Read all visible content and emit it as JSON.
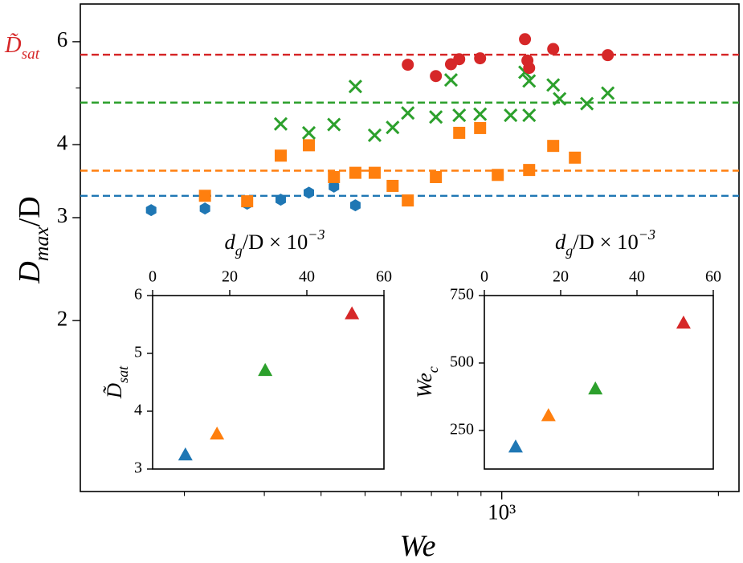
{
  "chart_data": [
    {
      "type": "scatter",
      "xlog": true,
      "ylog": true,
      "xlabel": {
        "text": "We"
      },
      "ylabel": {
        "text": "D",
        "sub": "max",
        "tail": "/D"
      },
      "annotation": {
        "text": "D̃",
        "sub": "sat",
        "color": "#d62728"
      },
      "xlim": [
        118,
        3330
      ],
      "ylim": [
        1.02,
        6.96
      ],
      "xticks": [
        {
          "value": 1000,
          "label": "10³"
        }
      ],
      "xminorticks": [
        200,
        300,
        400,
        500,
        600,
        700,
        800,
        900,
        2000,
        3000
      ],
      "yticks": [
        2,
        3,
        4,
        6
      ],
      "yminorticks": [
        5
      ],
      "hlines": [
        {
          "value": 5.7,
          "color": "#d62728"
        },
        {
          "value": 4.72,
          "color": "#2ca02c"
        },
        {
          "value": 3.61,
          "color": "#ff7f0e"
        },
        {
          "value": 3.27,
          "color": "#1f77b4"
        }
      ],
      "series": [
        {
          "color": "#1f77b4",
          "marker": "hexagon",
          "x": [
            169,
            222,
            275,
            326,
            376,
            427,
            476
          ],
          "values": [
            3.09,
            3.11,
            3.17,
            3.22,
            3.31,
            3.39,
            3.15
          ]
        },
        {
          "color": "#ff7f0e",
          "marker": "square",
          "x": [
            222,
            275,
            326,
            376,
            427,
            476,
            525,
            575,
            621,
            716,
            806,
            896,
            980,
            1149,
            1298,
            1449
          ],
          "values": [
            3.27,
            3.2,
            3.83,
            3.99,
            3.52,
            3.58,
            3.58,
            3.4,
            3.21,
            3.52,
            4.19,
            4.27,
            3.55,
            3.62,
            3.98,
            3.8
          ]
        },
        {
          "color": "#2ca02c",
          "marker": "x",
          "x": [
            326,
            376,
            427,
            476,
            525,
            575,
            621,
            716,
            773,
            806,
            896,
            1046,
            1125,
            1149,
            1149,
            1298,
            1341,
            1540,
            1712
          ],
          "values": [
            4.34,
            4.19,
            4.33,
            5.03,
            4.15,
            4.28,
            4.53,
            4.46,
            5.16,
            4.49,
            4.51,
            4.49,
            5.32,
            4.49,
            5.14,
            5.06,
            4.79,
            4.7,
            4.9
          ]
        },
        {
          "color": "#d62728",
          "marker": "circle",
          "x": [
            621,
            716,
            773,
            806,
            896,
            1125,
            1139,
            1149,
            1298,
            1712
          ],
          "values": [
            5.48,
            5.24,
            5.49,
            5.6,
            5.62,
            6.06,
            5.57,
            5.41,
            5.83,
            5.69
          ]
        }
      ]
    },
    {
      "type": "scatter",
      "xaxis_position": "top",
      "xlabel": {
        "text": "d",
        "sub": "g",
        "tail": "/D  × 10",
        "sup": "−3"
      },
      "ylabel": {
        "text": "D̃",
        "sub": "sat"
      },
      "xlim": [
        0,
        60
      ],
      "ylim": [
        3,
        6
      ],
      "xticks": [
        0,
        20,
        40,
        60
      ],
      "yticks": [
        3,
        4,
        5,
        6
      ],
      "series": [
        {
          "color": "#1f77b4",
          "marker": "triangle",
          "x": [
            8.5
          ],
          "values": [
            3.25
          ]
        },
        {
          "color": "#ff7f0e",
          "marker": "triangle",
          "x": [
            16.7
          ],
          "values": [
            3.61
          ]
        },
        {
          "color": "#2ca02c",
          "marker": "triangle",
          "x": [
            29.2
          ],
          "values": [
            4.71
          ]
        },
        {
          "color": "#d62728",
          "marker": "triangle",
          "x": [
            51.7
          ],
          "values": [
            5.69
          ]
        }
      ]
    },
    {
      "type": "scatter",
      "xaxis_position": "top",
      "xlabel": {
        "text": "d",
        "sub": "g",
        "tail": "/D  × 10",
        "sup": "−3"
      },
      "ylabel": {
        "text": "We",
        "sub": "c"
      },
      "xlim": [
        0,
        60
      ],
      "ylim": [
        107,
        750
      ],
      "xticks": [
        0,
        20,
        40,
        60
      ],
      "yticks": [
        250,
        500,
        750
      ],
      "series": [
        {
          "color": "#1f77b4",
          "marker": "triangle",
          "x": [
            8.2
          ],
          "values": [
            190
          ]
        },
        {
          "color": "#ff7f0e",
          "marker": "triangle",
          "x": [
            16.8
          ],
          "values": [
            306
          ]
        },
        {
          "color": "#2ca02c",
          "marker": "triangle",
          "x": [
            29.1
          ],
          "values": [
            405
          ]
        },
        {
          "color": "#d62728",
          "marker": "triangle",
          "x": [
            52.2
          ],
          "values": [
            649
          ]
        }
      ]
    }
  ]
}
